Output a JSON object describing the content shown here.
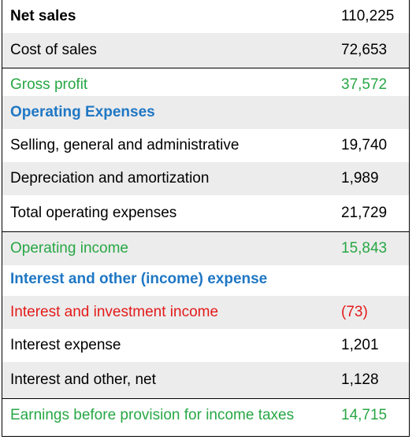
{
  "colors": {
    "section_heading": "#1f77c4",
    "subtotal": "#28a745",
    "negative_item": "#e41a1a",
    "shaded_row": "#ececec"
  },
  "rows": [
    {
      "label": "Net sales",
      "value": "110,225"
    },
    {
      "label": "Cost of sales",
      "value": "72,653"
    },
    {
      "label": "Gross profit",
      "value": "37,572"
    },
    {
      "label": "Operating Expenses",
      "value": ""
    },
    {
      "label": "Selling, general and administrative",
      "value": "19,740"
    },
    {
      "label": "Depreciation and amortization",
      "value": "1,989"
    },
    {
      "label": "Total operating expenses",
      "value": "21,729"
    },
    {
      "label": "Operating income",
      "value": "15,843"
    },
    {
      "label": "Interest and other (income) expense",
      "value": ""
    },
    {
      "label": "Interest and investment income",
      "value": "(73)"
    },
    {
      "label": "Interest expense",
      "value": "1,201"
    },
    {
      "label": "Interest and other, net",
      "value": "1,128"
    },
    {
      "label": "Earnings before provision for income taxes",
      "value": "14,715"
    }
  ]
}
